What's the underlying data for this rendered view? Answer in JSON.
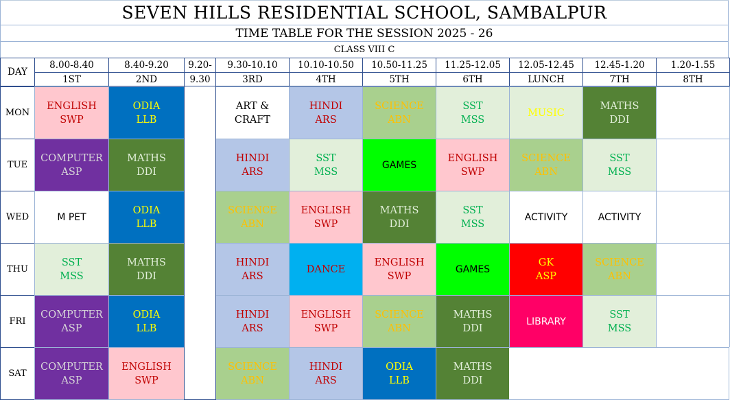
{
  "header": {
    "school": "SEVEN HILLS RESIDENTIAL SCHOOL, SAMBALPUR",
    "session": "TIME TABLE FOR THE SESSION 2025 - 26",
    "class": "CLASS VIII C"
  },
  "day_label": "DAY",
  "columns": [
    {
      "time": "8.00-8.40",
      "period": "1ST"
    },
    {
      "time": "8.40-9.20",
      "period": "2ND"
    },
    {
      "time": "9.20-",
      "period": "9.30"
    },
    {
      "time": "9.30-10.10",
      "period": "3RD"
    },
    {
      "time": "10.10-10.50",
      "period": "4TH"
    },
    {
      "time": "10.50-11.25",
      "period": "5TH"
    },
    {
      "time": "11.25-12.05",
      "period": "6TH"
    },
    {
      "time": "12.05-12.45",
      "period": "LUNCH"
    },
    {
      "time": "12.45-1.20",
      "period": "7TH"
    },
    {
      "time": "1.20-1.55",
      "period": "8TH"
    }
  ],
  "days": [
    "MON",
    "TUE",
    "WED",
    "THU",
    "FRI",
    "SAT"
  ],
  "schedule": [
    [
      {
        "subject": "ENGLISH",
        "teacher": "SWP",
        "style": "english"
      },
      {
        "subject": "ODIA",
        "teacher": "LLB",
        "style": "odia"
      },
      {
        "subject": "ART &",
        "teacher": "CRAFT",
        "style": "plain"
      },
      {
        "subject": "HINDI",
        "teacher": "ARS",
        "style": "hindi"
      },
      {
        "subject": "SCIENCE",
        "teacher": "ABN",
        "style": "science"
      },
      {
        "subject": "SST",
        "teacher": "MSS",
        "style": "sst"
      },
      {
        "subject": "MUSIC",
        "teacher": "",
        "style": "music"
      },
      {
        "subject": "MATHS",
        "teacher": "DDI",
        "style": "maths"
      },
      {
        "subject": "",
        "teacher": "",
        "style": "plain"
      }
    ],
    [
      {
        "subject": "COMPUTER",
        "teacher": "ASP",
        "style": "computer"
      },
      {
        "subject": "MATHS",
        "teacher": "DDI",
        "style": "maths"
      },
      {
        "subject": "HINDI",
        "teacher": "ARS",
        "style": "hindi"
      },
      {
        "subject": "SST",
        "teacher": "MSS",
        "style": "sst"
      },
      {
        "subject": "GAMES",
        "teacher": "",
        "style": "games"
      },
      {
        "subject": "ENGLISH",
        "teacher": "SWP",
        "style": "english"
      },
      {
        "subject": "SCIENCE",
        "teacher": "ABN",
        "style": "science"
      },
      {
        "subject": "SST",
        "teacher": "MSS",
        "style": "sst"
      },
      {
        "subject": "",
        "teacher": "",
        "style": "plain"
      }
    ],
    [
      {
        "subject": "M PET",
        "teacher": "",
        "style": "plain"
      },
      {
        "subject": "ODIA",
        "teacher": "LLB",
        "style": "odia"
      },
      {
        "subject": "SCIENCE",
        "teacher": "ABN",
        "style": "science"
      },
      {
        "subject": "ENGLISH",
        "teacher": "SWP",
        "style": "english"
      },
      {
        "subject": "MATHS",
        "teacher": "DDI",
        "style": "maths"
      },
      {
        "subject": "SST",
        "teacher": "MSS",
        "style": "sst"
      },
      {
        "subject": "ACTIVITY",
        "teacher": "",
        "style": "plain"
      },
      {
        "subject": "ACTIVITY",
        "teacher": "",
        "style": "plain"
      },
      {
        "subject": "",
        "teacher": "",
        "style": "plain"
      }
    ],
    [
      {
        "subject": "SST",
        "teacher": "MSS",
        "style": "sst"
      },
      {
        "subject": "MATHS",
        "teacher": "DDI",
        "style": "maths"
      },
      {
        "subject": "HINDI",
        "teacher": "ARS",
        "style": "hindi"
      },
      {
        "subject": "DANCE",
        "teacher": "",
        "style": "dance"
      },
      {
        "subject": "ENGLISH",
        "teacher": "SWP",
        "style": "english"
      },
      {
        "subject": "GAMES",
        "teacher": "",
        "style": "games"
      },
      {
        "subject": "GK",
        "teacher": "ASP",
        "style": "gk"
      },
      {
        "subject": "SCIENCE",
        "teacher": "ABN",
        "style": "science"
      },
      {
        "subject": "",
        "teacher": "",
        "style": "plain"
      }
    ],
    [
      {
        "subject": "COMPUTER",
        "teacher": "ASP",
        "style": "computer"
      },
      {
        "subject": "ODIA",
        "teacher": "LLB",
        "style": "odia"
      },
      {
        "subject": "HINDI",
        "teacher": "ARS",
        "style": "hindi"
      },
      {
        "subject": "ENGLISH",
        "teacher": "SWP",
        "style": "english"
      },
      {
        "subject": "SCIENCE",
        "teacher": "ABN",
        "style": "science"
      },
      {
        "subject": "MATHS",
        "teacher": "DDI",
        "style": "maths"
      },
      {
        "subject": "LIBRARY",
        "teacher": "",
        "style": "library"
      },
      {
        "subject": "SST",
        "teacher": "MSS",
        "style": "sst"
      },
      {
        "subject": "",
        "teacher": "",
        "style": "plain"
      }
    ],
    [
      {
        "subject": "COMPUTER",
        "teacher": "ASP",
        "style": "computer"
      },
      {
        "subject": "ENGLISH",
        "teacher": "SWP",
        "style": "english"
      },
      {
        "subject": "SCIENCE",
        "teacher": "ABN",
        "style": "science"
      },
      {
        "subject": "HINDI",
        "teacher": "ARS",
        "style": "hindi"
      },
      {
        "subject": "ODIA",
        "teacher": "LLB",
        "style": "odia"
      },
      {
        "subject": "MATHS",
        "teacher": "DDI",
        "style": "maths"
      },
      {
        "subject": "",
        "teacher": "",
        "style": "blank"
      },
      {
        "subject": "",
        "teacher": "",
        "style": "blank"
      },
      {
        "subject": "",
        "teacher": "",
        "style": "blank"
      }
    ]
  ],
  "styles": {
    "english": {
      "bg": "#ffc7ce",
      "fg": "#c00000"
    },
    "odia": {
      "bg": "#0070c0",
      "fg": "#ffff00"
    },
    "hindi": {
      "bg": "#b4c6e7",
      "fg": "#c00000"
    },
    "science": {
      "bg": "#a9d08e",
      "fg": "#ffc000"
    },
    "sst": {
      "bg": "#e2efda",
      "fg": "#00b050"
    },
    "music": {
      "bg": "#e2efda",
      "fg": "#ffff00"
    },
    "maths": {
      "bg": "#548235",
      "fg": "#e2efda"
    },
    "computer": {
      "bg": "#7030a0",
      "fg": "#d9d9d9"
    },
    "games": {
      "bg": "#00ff00",
      "fg": "#000000"
    },
    "dance": {
      "bg": "#00b0f0",
      "fg": "#c00000"
    },
    "gk": {
      "bg": "#ff0000",
      "fg": "#ffff00"
    },
    "library": {
      "bg": "#ff0066",
      "fg": "#ffffff"
    },
    "plain": {
      "bg": "#ffffff",
      "fg": "#000000"
    },
    "blank": {
      "bg": "#ffffff",
      "fg": "#000000"
    }
  }
}
